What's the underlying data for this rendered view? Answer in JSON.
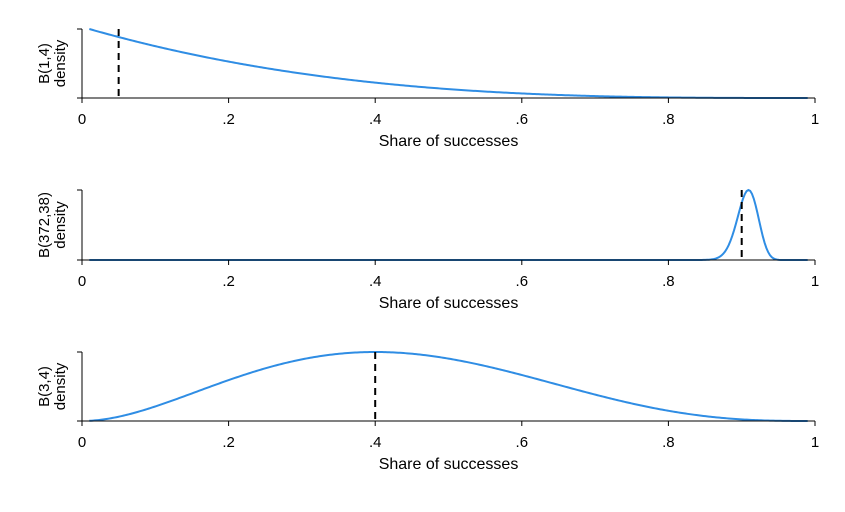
{
  "chart_data": [
    {
      "type": "line",
      "xlabel": "Share of successes",
      "ylabel_lines": [
        "B(1,4)",
        "density"
      ],
      "xlim": [
        0,
        1
      ],
      "x_ticks": [
        "0",
        ".2",
        ".4",
        ".6",
        ".8",
        "1"
      ],
      "x_tick_values": [
        0,
        0.2,
        0.4,
        0.6,
        0.8,
        1
      ],
      "distribution": {
        "alpha": 1,
        "beta": 4
      },
      "x": [
        0.01,
        0.1,
        0.2,
        0.3,
        0.4,
        0.5,
        0.6,
        0.7,
        0.8,
        0.9,
        0.99
      ],
      "series": [
        {
          "values": [
            0.97,
            0.73,
            0.51,
            0.34,
            0.22,
            0.13,
            0.06,
            0.03,
            0.01,
            0.0,
            0.0
          ]
        }
      ],
      "marker_x": 0.05,
      "line_color": "#2f8de4"
    },
    {
      "type": "line",
      "xlabel": "Share of successes",
      "ylabel_lines": [
        "B(372,38)",
        "density"
      ],
      "xlim": [
        0,
        1
      ],
      "x_ticks": [
        "0",
        ".2",
        ".4",
        ".6",
        ".8",
        "1"
      ],
      "x_tick_values": [
        0,
        0.2,
        0.4,
        0.6,
        0.8,
        1
      ],
      "distribution": {
        "alpha": 372,
        "beta": 38
      },
      "x": [
        0.01,
        0.85,
        0.87,
        0.89,
        0.9,
        0.91,
        0.92,
        0.93,
        0.95,
        0.99
      ],
      "series": [
        {
          "values": [
            0.0,
            0.01,
            0.11,
            0.53,
            0.86,
            1.0,
            0.86,
            0.52,
            0.06,
            0.0
          ]
        }
      ],
      "marker_x": 0.9,
      "line_color": "#2f8de4"
    },
    {
      "type": "line",
      "xlabel": "Share of successes",
      "ylabel_lines": [
        "B(3,4)",
        "density"
      ],
      "xlim": [
        0,
        1
      ],
      "x_ticks": [
        "0",
        ".2",
        ".4",
        ".6",
        ".8",
        "1"
      ],
      "x_tick_values": [
        0,
        0.2,
        0.4,
        0.6,
        0.8,
        1
      ],
      "distribution": {
        "alpha": 3,
        "beta": 4
      },
      "x": [
        0.01,
        0.1,
        0.2,
        0.3,
        0.4,
        0.5,
        0.6,
        0.7,
        0.8,
        0.9,
        0.99
      ],
      "series": [
        {
          "values": [
            0.0,
            0.2,
            0.59,
            0.89,
            1.0,
            0.89,
            0.64,
            0.35,
            0.12,
            0.02,
            0.0
          ]
        }
      ],
      "marker_x": 0.4,
      "line_color": "#2f8de4"
    }
  ]
}
